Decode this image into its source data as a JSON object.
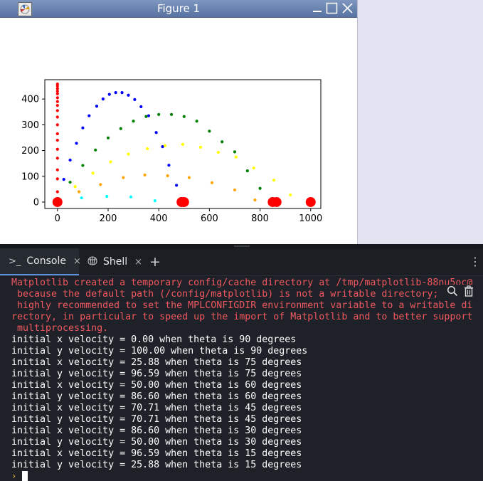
{
  "window": {
    "title": "Figure 1"
  },
  "chart_data": {
    "type": "scatter",
    "title": "",
    "xlabel": "",
    "ylabel": "",
    "xlim": [
      -50,
      1040
    ],
    "ylim": [
      -25,
      475
    ],
    "xticks": [
      "0",
      "200",
      "400",
      "600",
      "800",
      "1000"
    ],
    "yticks": [
      "0",
      "100",
      "200",
      "300",
      "400"
    ],
    "grid": false,
    "legend": "none",
    "series": [
      {
        "color": "#ff0000",
        "points": [
          [
            0,
            0
          ],
          [
            0,
            40
          ],
          [
            0,
            90
          ],
          [
            0,
            125
          ],
          [
            0,
            170
          ],
          [
            0,
            205
          ],
          [
            0,
            240
          ],
          [
            0,
            265
          ],
          [
            0,
            300
          ],
          [
            0,
            330
          ],
          [
            0,
            355
          ],
          [
            0,
            375
          ],
          [
            0,
            390
          ],
          [
            0,
            405
          ],
          [
            0,
            420
          ],
          [
            0,
            430
          ],
          [
            0,
            440
          ],
          [
            0,
            450
          ],
          [
            0,
            458
          ]
        ]
      },
      {
        "color": "#0000ff",
        "points": [
          [
            0,
            0
          ],
          [
            25,
            88
          ],
          [
            50,
            163
          ],
          [
            75,
            228
          ],
          [
            100,
            288
          ],
          [
            125,
            335
          ],
          [
            155,
            372
          ],
          [
            180,
            400
          ],
          [
            205,
            418
          ],
          [
            230,
            425
          ],
          [
            255,
            425
          ],
          [
            280,
            415
          ],
          [
            305,
            398
          ],
          [
            330,
            370
          ],
          [
            360,
            335
          ],
          [
            390,
            270
          ],
          [
            415,
            215
          ],
          [
            440,
            143
          ],
          [
            470,
            65
          ]
        ]
      },
      {
        "color": "#008000",
        "points": [
          [
            0,
            0
          ],
          [
            50,
            77
          ],
          [
            100,
            142
          ],
          [
            150,
            202
          ],
          [
            200,
            249
          ],
          [
            250,
            285
          ],
          [
            300,
            314
          ],
          [
            350,
            332
          ],
          [
            400,
            340
          ],
          [
            450,
            340
          ],
          [
            500,
            332
          ],
          [
            550,
            314
          ],
          [
            600,
            275
          ],
          [
            650,
            234
          ],
          [
            700,
            195
          ],
          [
            750,
            121
          ],
          [
            800,
            53
          ]
        ]
      },
      {
        "color": "#ffff00",
        "points": [
          [
            0,
            0
          ],
          [
            70,
            60
          ],
          [
            140,
            112
          ],
          [
            210,
            156
          ],
          [
            280,
            186
          ],
          [
            355,
            207
          ],
          [
            425,
            219
          ],
          [
            495,
            224
          ],
          [
            565,
            213
          ],
          [
            635,
            193
          ],
          [
            705,
            175
          ],
          [
            775,
            132
          ],
          [
            855,
            85
          ],
          [
            920,
            28
          ]
        ]
      },
      {
        "color": "#ffa500",
        "points": [
          [
            0,
            0
          ],
          [
            85,
            40
          ],
          [
            170,
            68
          ],
          [
            260,
            95
          ],
          [
            345,
            105
          ],
          [
            435,
            102
          ],
          [
            520,
            95
          ],
          [
            610,
            75
          ],
          [
            700,
            47
          ],
          [
            780,
            8
          ]
        ]
      },
      {
        "color": "#00ffff",
        "points": [
          [
            0,
            0
          ],
          [
            95,
            16
          ],
          [
            195,
            22
          ],
          [
            290,
            20
          ],
          [
            385,
            5
          ]
        ]
      }
    ],
    "impact_markers": [
      {
        "color": "#ff0000",
        "points": [
          [
            0,
            0
          ],
          [
            490,
            0
          ],
          [
            500,
            0
          ],
          [
            850,
            0
          ],
          [
            865,
            0
          ],
          [
            1000,
            0
          ]
        ]
      }
    ]
  },
  "tabs": [
    {
      "label": "Console",
      "icon": "terminal-icon",
      "active": true
    },
    {
      "label": "Shell",
      "icon": "shell-icon",
      "active": false
    }
  ],
  "console": {
    "error_lines": [
      "Matplotlib created a temporary config/cache directory at /tmp/matplotlib-88nu5oc@",
      " because the default path (/config/matplotlib) is not a writable directory;",
      " highly recommended to set the MPLCONFIGDIR environment variable to a writable di",
      "rectory, in particular to speed up the import of Matplotlib and to better support",
      " multiprocessing."
    ],
    "output_lines": [
      "initial x velocity = 0.00 when theta is 90 degrees",
      "initial y velocity = 100.00 when theta is 90 degrees",
      "initial x velocity = 25.88 when theta is 75 degrees",
      "initial y velocity = 96.59 when theta is 75 degrees",
      "initial x velocity = 50.00 when theta is 60 degrees",
      "initial y velocity = 86.60 when theta is 60 degrees",
      "initial x velocity = 70.71 when theta is 45 degrees",
      "initial y velocity = 70.71 when theta is 45 degrees",
      "initial x velocity = 86.60 when theta is 30 degrees",
      "initial y velocity = 50.00 when theta is 30 degrees",
      "initial x velocity = 96.59 when theta is 15 degrees",
      "initial y velocity = 25.88 when theta is 15 degrees"
    ],
    "prompt_symbol": "›"
  },
  "icons": {
    "tab_close": "×",
    "add_tab": "+",
    "more_menu": "⋮"
  },
  "colors": {
    "titlebar": "#6a84b3",
    "console_bg": "#1e2228",
    "error_text": "#f0575f",
    "active_tab_underline": "#5a91e0"
  }
}
